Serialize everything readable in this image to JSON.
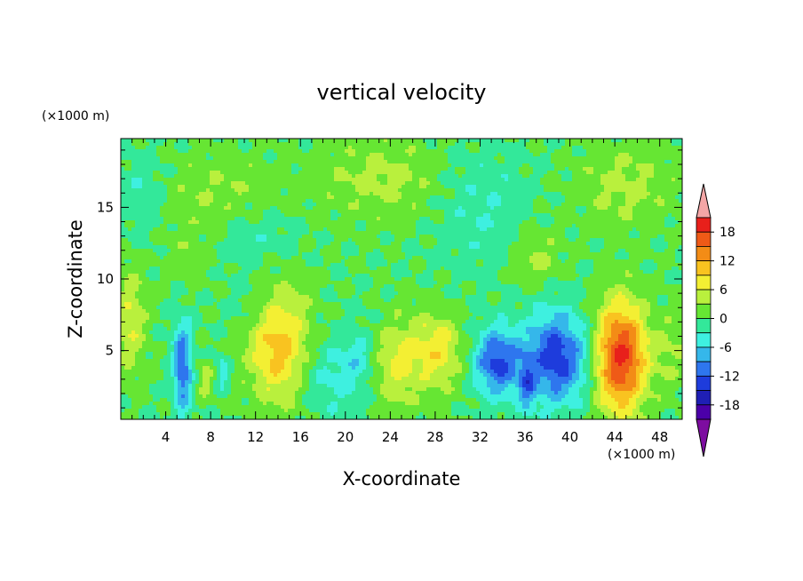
{
  "chart_data": {
    "type": "heatmap",
    "title": "vertical velocity",
    "xlabel": "X-coordinate",
    "ylabel": "Z-coordinate",
    "x_unit": "(×1000 m)",
    "y_unit": "(×1000 m)",
    "xlim": [
      0,
      50
    ],
    "ylim": [
      0.2,
      19.8
    ],
    "x_ticks": [
      4,
      8,
      12,
      16,
      20,
      24,
      28,
      32,
      36,
      40,
      44,
      48
    ],
    "y_ticks": [
      5,
      10,
      15
    ],
    "colorbar": {
      "levels": [
        -21,
        -18,
        -15,
        -12,
        -9,
        -6,
        -3,
        0,
        3,
        6,
        9,
        12,
        15,
        18,
        21
      ],
      "tick_labels": [
        18,
        12,
        6,
        0,
        -6,
        -12,
        -18
      ],
      "colors": [
        "#7d0da0",
        "#4b00a8",
        "#1f1fb4",
        "#1e3cdc",
        "#2e76ee",
        "#35b7ea",
        "#3ef0e0",
        "#33e89a",
        "#66e633",
        "#b9f03d",
        "#f3ef33",
        "#f9c320",
        "#f38c16",
        "#ef5a17",
        "#e8201b",
        "#f4a6a6"
      ],
      "extend": "both"
    },
    "features": [
      {
        "x": 44.5,
        "z": 4.5,
        "value": 19,
        "sx": 1.6,
        "sz": 2.7
      },
      {
        "x": 14.0,
        "z": 5.5,
        "value": 11,
        "sx": 1.9,
        "sz": 2.8
      },
      {
        "x": 28.0,
        "z": 5.0,
        "value": 8,
        "sx": 1.7,
        "sz": 1.9
      },
      {
        "x": 24.5,
        "z": 4.0,
        "value": 6,
        "sx": 1.3,
        "sz": 2.2
      },
      {
        "x": 0.8,
        "z": 7.0,
        "value": 6,
        "sx": 1.0,
        "sz": 2.5
      },
      {
        "x": 7.5,
        "z": 3.0,
        "value": 4,
        "sx": 0.6,
        "sz": 1.0
      },
      {
        "x": 49.0,
        "z": 5.0,
        "value": 3,
        "sx": 1.2,
        "sz": 2.0
      },
      {
        "x": 38.8,
        "z": 4.5,
        "value": -14,
        "sx": 2.0,
        "sz": 2.2
      },
      {
        "x": 33.5,
        "z": 4.2,
        "value": -13,
        "sx": 1.4,
        "sz": 1.6
      },
      {
        "x": 5.5,
        "z": 3.8,
        "value": -12,
        "sx": 0.6,
        "sz": 2.2
      },
      {
        "x": 36.2,
        "z": 2.5,
        "value": -8,
        "sx": 0.5,
        "sz": 1.2
      },
      {
        "x": 9.0,
        "z": 3.5,
        "value": -6,
        "sx": 0.4,
        "sz": 0.8
      },
      {
        "x": 18.5,
        "z": 3.0,
        "value": -4,
        "sx": 1.8,
        "sz": 2.0
      },
      {
        "x": 21.0,
        "z": 4.5,
        "value": -4,
        "sx": 1.0,
        "sz": 1.5
      },
      {
        "x": 12.0,
        "z": 8.0,
        "value": -3,
        "sx": 1.5,
        "sz": 1.5
      },
      {
        "x": 9.0,
        "z": 16.0,
        "value": 3,
        "sx": 4.0,
        "sz": 2.0
      },
      {
        "x": 23.5,
        "z": 17.0,
        "value": 4,
        "sx": 4.0,
        "sz": 2.0
      },
      {
        "x": 45.0,
        "z": 16.5,
        "value": 4,
        "sx": 3.0,
        "sz": 2.0
      },
      {
        "x": 37.0,
        "z": 11.5,
        "value": 4,
        "sx": 1.5,
        "sz": 1.5
      },
      {
        "x": 6.0,
        "z": 11.5,
        "value": 2,
        "sx": 1.5,
        "sz": 1.5
      },
      {
        "x": 12.0,
        "z": 13.0,
        "value": -3,
        "sx": 2.5,
        "sz": 1.5
      },
      {
        "x": 32.0,
        "z": 15.0,
        "value": -3,
        "sx": 3.0,
        "sz": 3.0
      },
      {
        "x": 2.0,
        "z": 16.0,
        "value": -3,
        "sx": 1.5,
        "sz": 2.0
      }
    ]
  }
}
